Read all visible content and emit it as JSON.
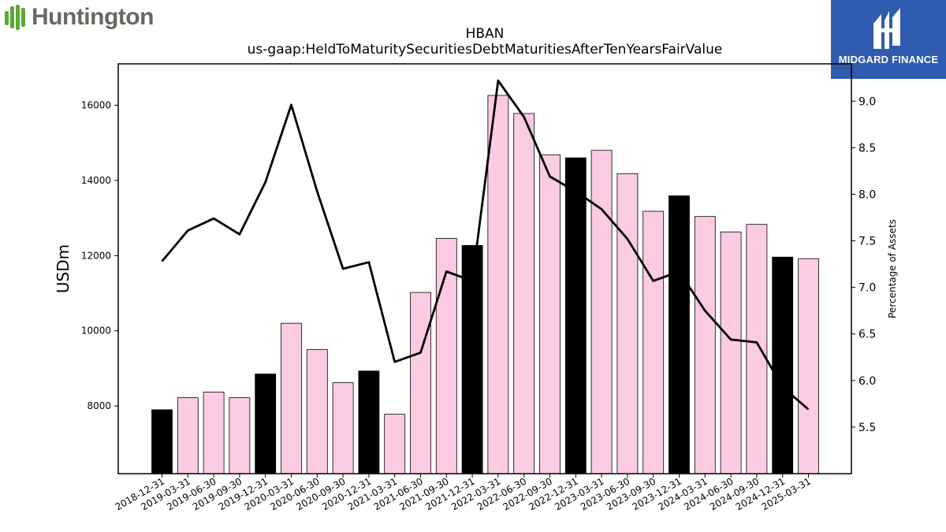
{
  "brand_left": {
    "name": "Huntington",
    "icon": "huntington-leaf-icon",
    "color": "#5aa832"
  },
  "brand_right": {
    "name": "MIDGARD FINANCE",
    "icon": "midgard-logo-icon",
    "background": "#2f5bb0"
  },
  "chart_data": {
    "type": "bar",
    "title": "HBAN",
    "subtitle": "us-gaap:HeldToMaturitySecuritiesDebtMaturitiesAfterTenYearsFairValue",
    "ylabel": "USDm",
    "y2label": "Percentage of Assets",
    "ylim": [
      6200,
      17100
    ],
    "y2lim": [
      5.0,
      9.4
    ],
    "yticks": [
      8000,
      10000,
      12000,
      14000,
      16000
    ],
    "y2ticks": [
      "5.5",
      "6.0",
      "6.5",
      "7.0",
      "7.5",
      "8.0",
      "8.5",
      "9.0"
    ],
    "categories": [
      "2018-12-31",
      "2019-03-31",
      "2019-06-30",
      "2019-09-30",
      "2019-12-31",
      "2020-03-31",
      "2020-06-30",
      "2020-09-30",
      "2020-12-31",
      "2021-03-31",
      "2021-06-30",
      "2021-09-30",
      "2021-12-31",
      "2022-03-31",
      "2022-06-30",
      "2022-09-30",
      "2022-12-31",
      "2023-03-31",
      "2023-06-30",
      "2023-09-30",
      "2023-12-31",
      "2024-03-31",
      "2024-06-30",
      "2024-09-30",
      "2024-12-31",
      "2025-03-31"
    ],
    "series": [
      {
        "type": "bar",
        "values": [
          7900,
          8220,
          8370,
          8220,
          8850,
          10200,
          9500,
          8620,
          8930,
          7780,
          11020,
          12460,
          12270,
          16260,
          15780,
          14680,
          14600,
          14800,
          14180,
          13180,
          13590,
          13040,
          12630,
          12830,
          11960,
          11920
        ]
      },
      {
        "type": "line",
        "axis": "right",
        "values": [
          7.28,
          7.61,
          7.74,
          7.57,
          8.13,
          8.96,
          8.03,
          7.2,
          7.27,
          6.2,
          6.3,
          7.17,
          7.07,
          9.22,
          8.83,
          8.19,
          8.03,
          7.84,
          7.52,
          7.07,
          7.17,
          6.75,
          6.44,
          6.41,
          5.93,
          5.69
        ]
      }
    ],
    "colors": {
      "bar": "#fbcbe3",
      "bar_year_end": "#000000",
      "line": "#000000",
      "bar_edge": "#000000"
    }
  }
}
